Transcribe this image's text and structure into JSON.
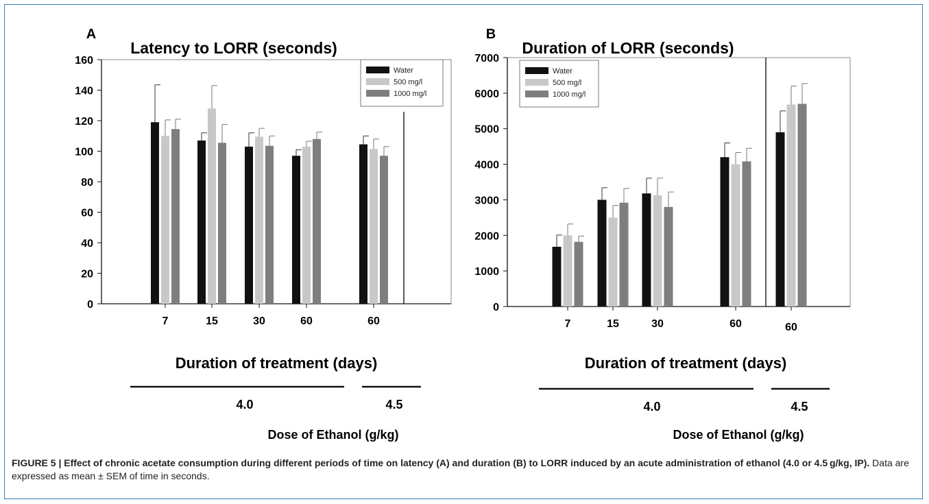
{
  "chart_data": [
    {
      "panel_label": "A",
      "type": "bar",
      "title": "Latency to LORR (seconds)",
      "xlabel": "Duration of treatment (days)",
      "ylabel": "",
      "categories": [
        "7",
        "15",
        "30",
        "60",
        "60"
      ],
      "ylim": [
        0,
        160
      ],
      "yticks": [
        "0",
        "20",
        "40",
        "60",
        "80",
        "100",
        "120",
        "140",
        "160"
      ],
      "grid": false,
      "legend_position": "top-right",
      "series": [
        {
          "name": "Water",
          "color": "#111111",
          "values": [
            119,
            107,
            103,
            97,
            104.5
          ],
          "error": [
            24.5,
            5,
            9,
            4,
            5.5
          ]
        },
        {
          "name": "500 mg/l",
          "color": "#c8c8c8",
          "values": [
            110,
            128,
            109.5,
            103,
            101.5
          ],
          "error": [
            10.5,
            15,
            5.5,
            3.5,
            6.5
          ]
        },
        {
          "name": "1000 mg/l",
          "color": "#7e7e7e",
          "values": [
            114.5,
            105.5,
            103.5,
            108,
            97
          ],
          "error": [
            6.5,
            12,
            6.5,
            4.5,
            6
          ]
        }
      ],
      "dose_groups": [
        {
          "label": "4.0"
        },
        {
          "label": "4.5"
        }
      ],
      "dose_label": "Dose of Ethanol (g/kg)"
    },
    {
      "panel_label": "B",
      "type": "bar",
      "title": "Duration of LORR (seconds)",
      "xlabel": "Duration of treatment (days)",
      "ylabel": "",
      "categories": [
        "7",
        "15",
        "30",
        "60",
        "60"
      ],
      "ylim": [
        0,
        7000
      ],
      "yticks": [
        "0",
        "1000",
        "2000",
        "3000",
        "4000",
        "5000",
        "6000",
        "7000"
      ],
      "grid": false,
      "legend_position": "top-left",
      "series": [
        {
          "name": "Water",
          "color": "#111111",
          "values": [
            1680,
            3000,
            3180,
            4200,
            4900
          ],
          "error": [
            330,
            340,
            430,
            400,
            600
          ]
        },
        {
          "name": "500 mg/l",
          "color": "#c8c8c8",
          "values": [
            2000,
            2500,
            3130,
            4000,
            5680
          ],
          "error": [
            320,
            340,
            480,
            330,
            520
          ]
        },
        {
          "name": "1000 mg/l",
          "color": "#7e7e7e",
          "values": [
            1820,
            2920,
            2800,
            4080,
            5700
          ],
          "error": [
            160,
            400,
            420,
            370,
            570
          ]
        }
      ],
      "dose_groups": [
        {
          "label": "4.0"
        },
        {
          "label": "4.5"
        }
      ],
      "dose_label": "Dose of Ethanol (g/kg)"
    }
  ],
  "caption": {
    "bold": "FIGURE 5 | Effect of chronic acetate consumption during different periods of time on latency (A) and duration (B) to LORR induced by an acute administration of ethanol (4.0 or 4.5 g/kg, IP).",
    "normal": " Data are expressed as mean ± SEM of time in seconds."
  }
}
